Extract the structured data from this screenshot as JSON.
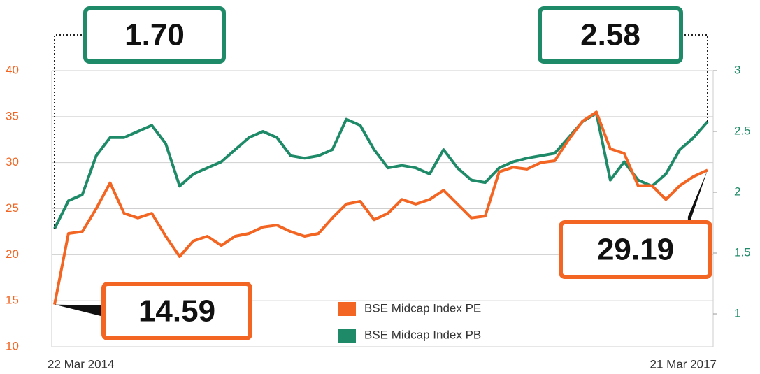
{
  "chart_data": {
    "type": "line",
    "categories": [
      "22 Mar 2014",
      null,
      null,
      null,
      null,
      null,
      null,
      null,
      null,
      null,
      null,
      null,
      null,
      null,
      null,
      null,
      null,
      null,
      null,
      null,
      null,
      null,
      null,
      null,
      null,
      null,
      null,
      null,
      null,
      null,
      null,
      null,
      null,
      null,
      null,
      null,
      null,
      null,
      null,
      null,
      null,
      null,
      null,
      null,
      null,
      null,
      null,
      "21 Mar 2017"
    ],
    "series": [
      {
        "name": "BSE Midcap Index PE",
        "color": "#f26522",
        "axis": "y",
        "values": [
          14.59,
          22.3,
          22.5,
          25,
          27.8,
          24.5,
          24,
          24.5,
          22,
          19.8,
          21.5,
          22,
          21,
          22,
          22.3,
          23,
          23.2,
          22.5,
          22,
          22.3,
          24,
          25.5,
          25.8,
          23.8,
          24.5,
          26,
          25.5,
          26,
          27,
          25.5,
          24,
          24.2,
          29,
          29.5,
          29.3,
          30,
          30.2,
          32.5,
          34.5,
          35.5,
          31.5,
          31,
          27.5,
          27.5,
          26,
          27.5,
          28.5,
          29.19
        ]
      },
      {
        "name": "BSE Midcap Index PB",
        "color": "#1f8a68",
        "axis": "y2",
        "values": [
          1.7,
          1.93,
          1.98,
          2.3,
          2.45,
          2.45,
          2.5,
          2.55,
          2.4,
          2.05,
          2.15,
          2.2,
          2.25,
          2.35,
          2.45,
          2.5,
          2.45,
          2.3,
          2.28,
          2.3,
          2.35,
          2.6,
          2.55,
          2.35,
          2.2,
          2.22,
          2.2,
          2.15,
          2.35,
          2.2,
          2.1,
          2.08,
          2.2,
          2.25,
          2.28,
          2.3,
          2.32,
          2.45,
          2.58,
          2.65,
          2.1,
          2.25,
          2.1,
          2.05,
          2.15,
          2.35,
          2.45,
          2.58
        ],
        "value_labels": [
          "1.70",
          null,
          null,
          null,
          null,
          null,
          null,
          null,
          null,
          null,
          null,
          null,
          null,
          null,
          null,
          null,
          null,
          null,
          null,
          null,
          null,
          null,
          null,
          null,
          null,
          null,
          null,
          null,
          null,
          null,
          null,
          null,
          null,
          null,
          null,
          null,
          null,
          null,
          null,
          null,
          null,
          null,
          null,
          null,
          null,
          null,
          null,
          "2.58"
        ]
      }
    ],
    "ylim": [
      10,
      40
    ],
    "yticks": [
      10,
      15,
      20,
      25,
      30,
      35,
      40
    ],
    "y2lim": [
      0.73,
      3
    ],
    "y2ticks": [
      1,
      1.5,
      2,
      2.5,
      3
    ],
    "grid": true,
    "legend": "bottom"
  }
}
